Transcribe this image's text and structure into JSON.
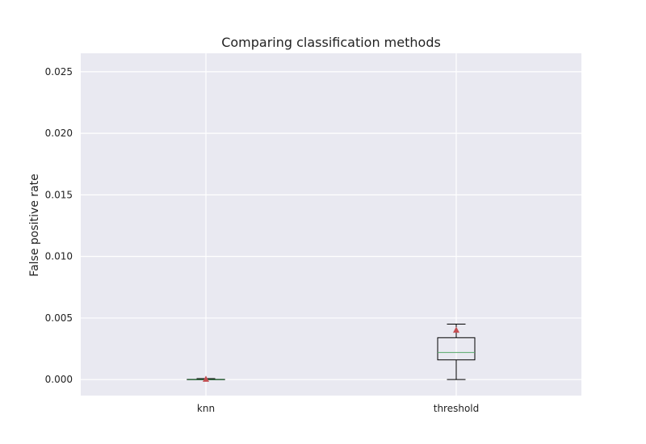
{
  "chart_data": {
    "type": "box",
    "title": "Comparing classification methods",
    "xlabel": "",
    "ylabel": "False positive rate",
    "categories": [
      "knn",
      "threshold"
    ],
    "ylim": [
      -0.0013,
      0.0265
    ],
    "yticks": [
      0.0,
      0.005,
      0.01,
      0.015,
      0.02,
      0.025
    ],
    "ytick_labels": [
      "0.000",
      "0.005",
      "0.010",
      "0.015",
      "0.020",
      "0.025"
    ],
    "grid": true,
    "boxes": [
      {
        "category": "knn",
        "whisker_low": 0.0,
        "q1": 0.0,
        "median": 0.0,
        "q3": 2e-05,
        "whisker_high": 8e-05,
        "mean": 2e-05
      },
      {
        "category": "threshold",
        "whisker_low": 0.0,
        "q1": 0.0016,
        "median": 0.0022,
        "q3": 0.0034,
        "whisker_high": 0.0045,
        "mean": 0.004
      }
    ],
    "colors": {
      "background": "#e9e9f1",
      "grid": "#ffffff",
      "box": "#000000",
      "median": "#55a868",
      "mean": "#c44e52"
    }
  }
}
